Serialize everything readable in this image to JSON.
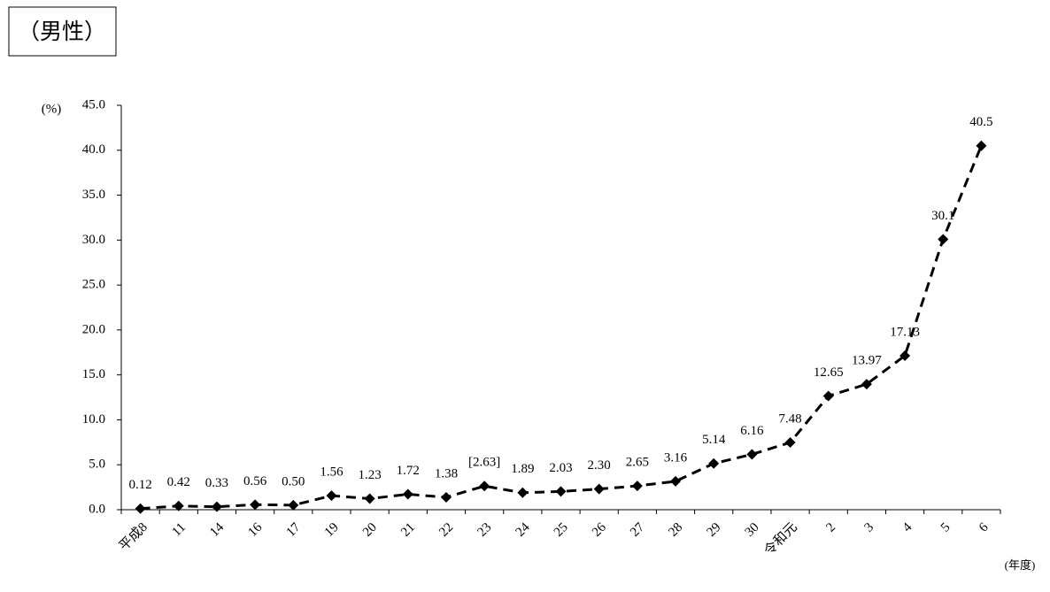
{
  "chart_data": {
    "type": "line",
    "title": "（男性）",
    "y_label": "(%)",
    "x_label": "(年度)",
    "categories": [
      "平成8",
      "11",
      "14",
      "16",
      "17",
      "19",
      "20",
      "21",
      "22",
      "23",
      "24",
      "25",
      "26",
      "27",
      "28",
      "29",
      "30",
      "令和元",
      "2",
      "3",
      "4",
      "5",
      "6"
    ],
    "values": [
      0.12,
      0.42,
      0.33,
      0.56,
      0.5,
      1.56,
      1.23,
      1.72,
      1.38,
      2.63,
      1.89,
      2.03,
      2.3,
      2.65,
      3.16,
      5.14,
      6.16,
      7.48,
      12.65,
      13.97,
      17.13,
      30.1,
      40.5
    ],
    "value_labels": [
      "0.12",
      "0.42",
      "0.33",
      "0.56",
      "0.50",
      "1.56",
      "1.23",
      "1.72",
      "1.38",
      "[2.63]",
      "1.89",
      "2.03",
      "2.30",
      "2.65",
      "3.16",
      "5.14",
      "6.16",
      "7.48",
      "12.65",
      "13.97",
      "17.13",
      "30.1",
      "40.5"
    ],
    "color": "#000000",
    "line_style": "dashed",
    "ylim": [
      0,
      45
    ],
    "yticks": [
      {
        "value": 0,
        "label": "0.0"
      },
      {
        "value": 5,
        "label": "5.0"
      },
      {
        "value": 10,
        "label": "10.0"
      },
      {
        "value": 15,
        "label": "15.0"
      },
      {
        "value": 20,
        "label": "20.0"
      },
      {
        "value": 25,
        "label": "25.0"
      },
      {
        "value": 30,
        "label": "30.0"
      },
      {
        "value": 35,
        "label": "35.0"
      },
      {
        "value": 40,
        "label": "40.0"
      },
      {
        "value": 45,
        "label": "45.0"
      }
    ],
    "grid": false
  }
}
